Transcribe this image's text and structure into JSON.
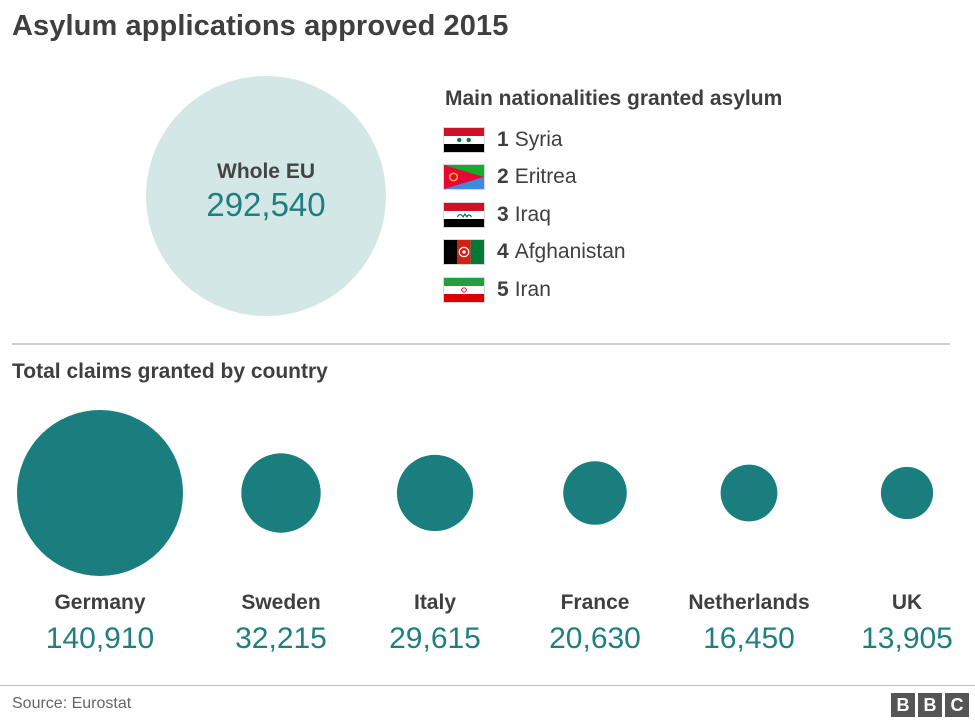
{
  "title": "Asylum applications approved 2015",
  "whole_eu": {
    "label": "Whole EU",
    "value": "292,540",
    "circle_color": "#d3e7e6"
  },
  "nationalities": {
    "title": "Main nationalities granted asylum",
    "items": [
      {
        "rank": "1",
        "name": "Syria",
        "flag_icon": "syria-flag-icon"
      },
      {
        "rank": "2",
        "name": "Eritrea",
        "flag_icon": "eritrea-flag-icon"
      },
      {
        "rank": "3",
        "name": "Iraq",
        "flag_icon": "iraq-flag-icon"
      },
      {
        "rank": "4",
        "name": "Afghanistan",
        "flag_icon": "afghanistan-flag-icon"
      },
      {
        "rank": "5",
        "name": "Iran",
        "flag_icon": "iran-flag-icon"
      }
    ]
  },
  "chart_data": {
    "type": "bubble",
    "title": "Total claims granted by country",
    "categories": [
      "Germany",
      "Sweden",
      "Italy",
      "France",
      "Netherlands",
      "UK"
    ],
    "values": [
      140910,
      32215,
      29615,
      20630,
      16450,
      13905
    ],
    "value_labels": [
      "140,910",
      "32,215",
      "29,615",
      "20,630",
      "16,450",
      "13,905"
    ],
    "color": "#1a7e7f",
    "label_color": "#1f7f80"
  },
  "source": "Source: Eurostat",
  "logo": {
    "letters": [
      "B",
      "B",
      "C"
    ]
  }
}
